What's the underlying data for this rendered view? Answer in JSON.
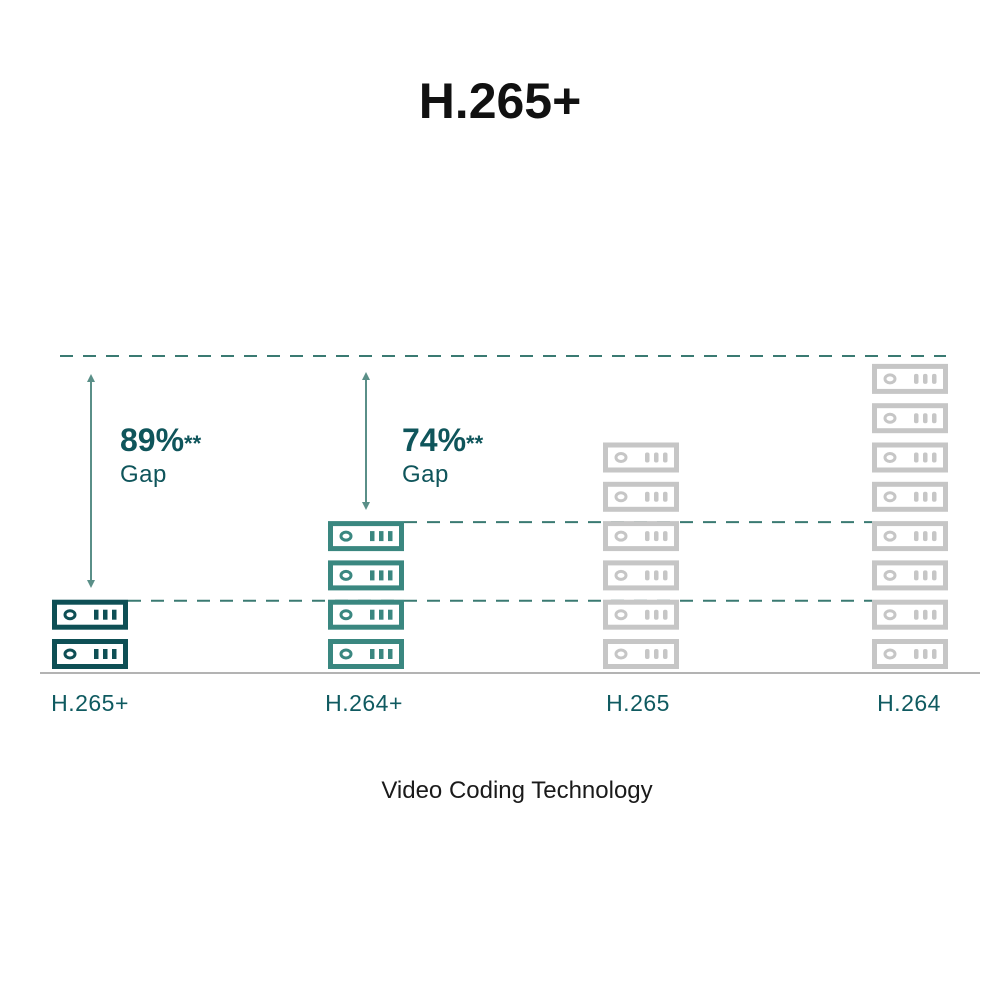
{
  "chart_data": {
    "type": "bar",
    "style": "pictogram of stacked server icons",
    "title": "H.265+",
    "xlabel": "Video Coding Technology",
    "ylabel": "",
    "categories": [
      "H.265+",
      "H.264+",
      "H.265",
      "H.264"
    ],
    "values": [
      2,
      4,
      6,
      8
    ],
    "colors": [
      "#0e4f55",
      "#3a8780",
      "#c6c6c6",
      "#c6c6c6"
    ],
    "annotations": [
      {
        "category": "H.265+",
        "value": "89%",
        "suffix": "**",
        "label": "Gap"
      },
      {
        "category": "H.264+",
        "value": "74%",
        "suffix": "**",
        "label": "Gap"
      }
    ],
    "reference_line_color": "#3a7a72",
    "baseline_color": "#9a9a9a",
    "grid": false
  }
}
